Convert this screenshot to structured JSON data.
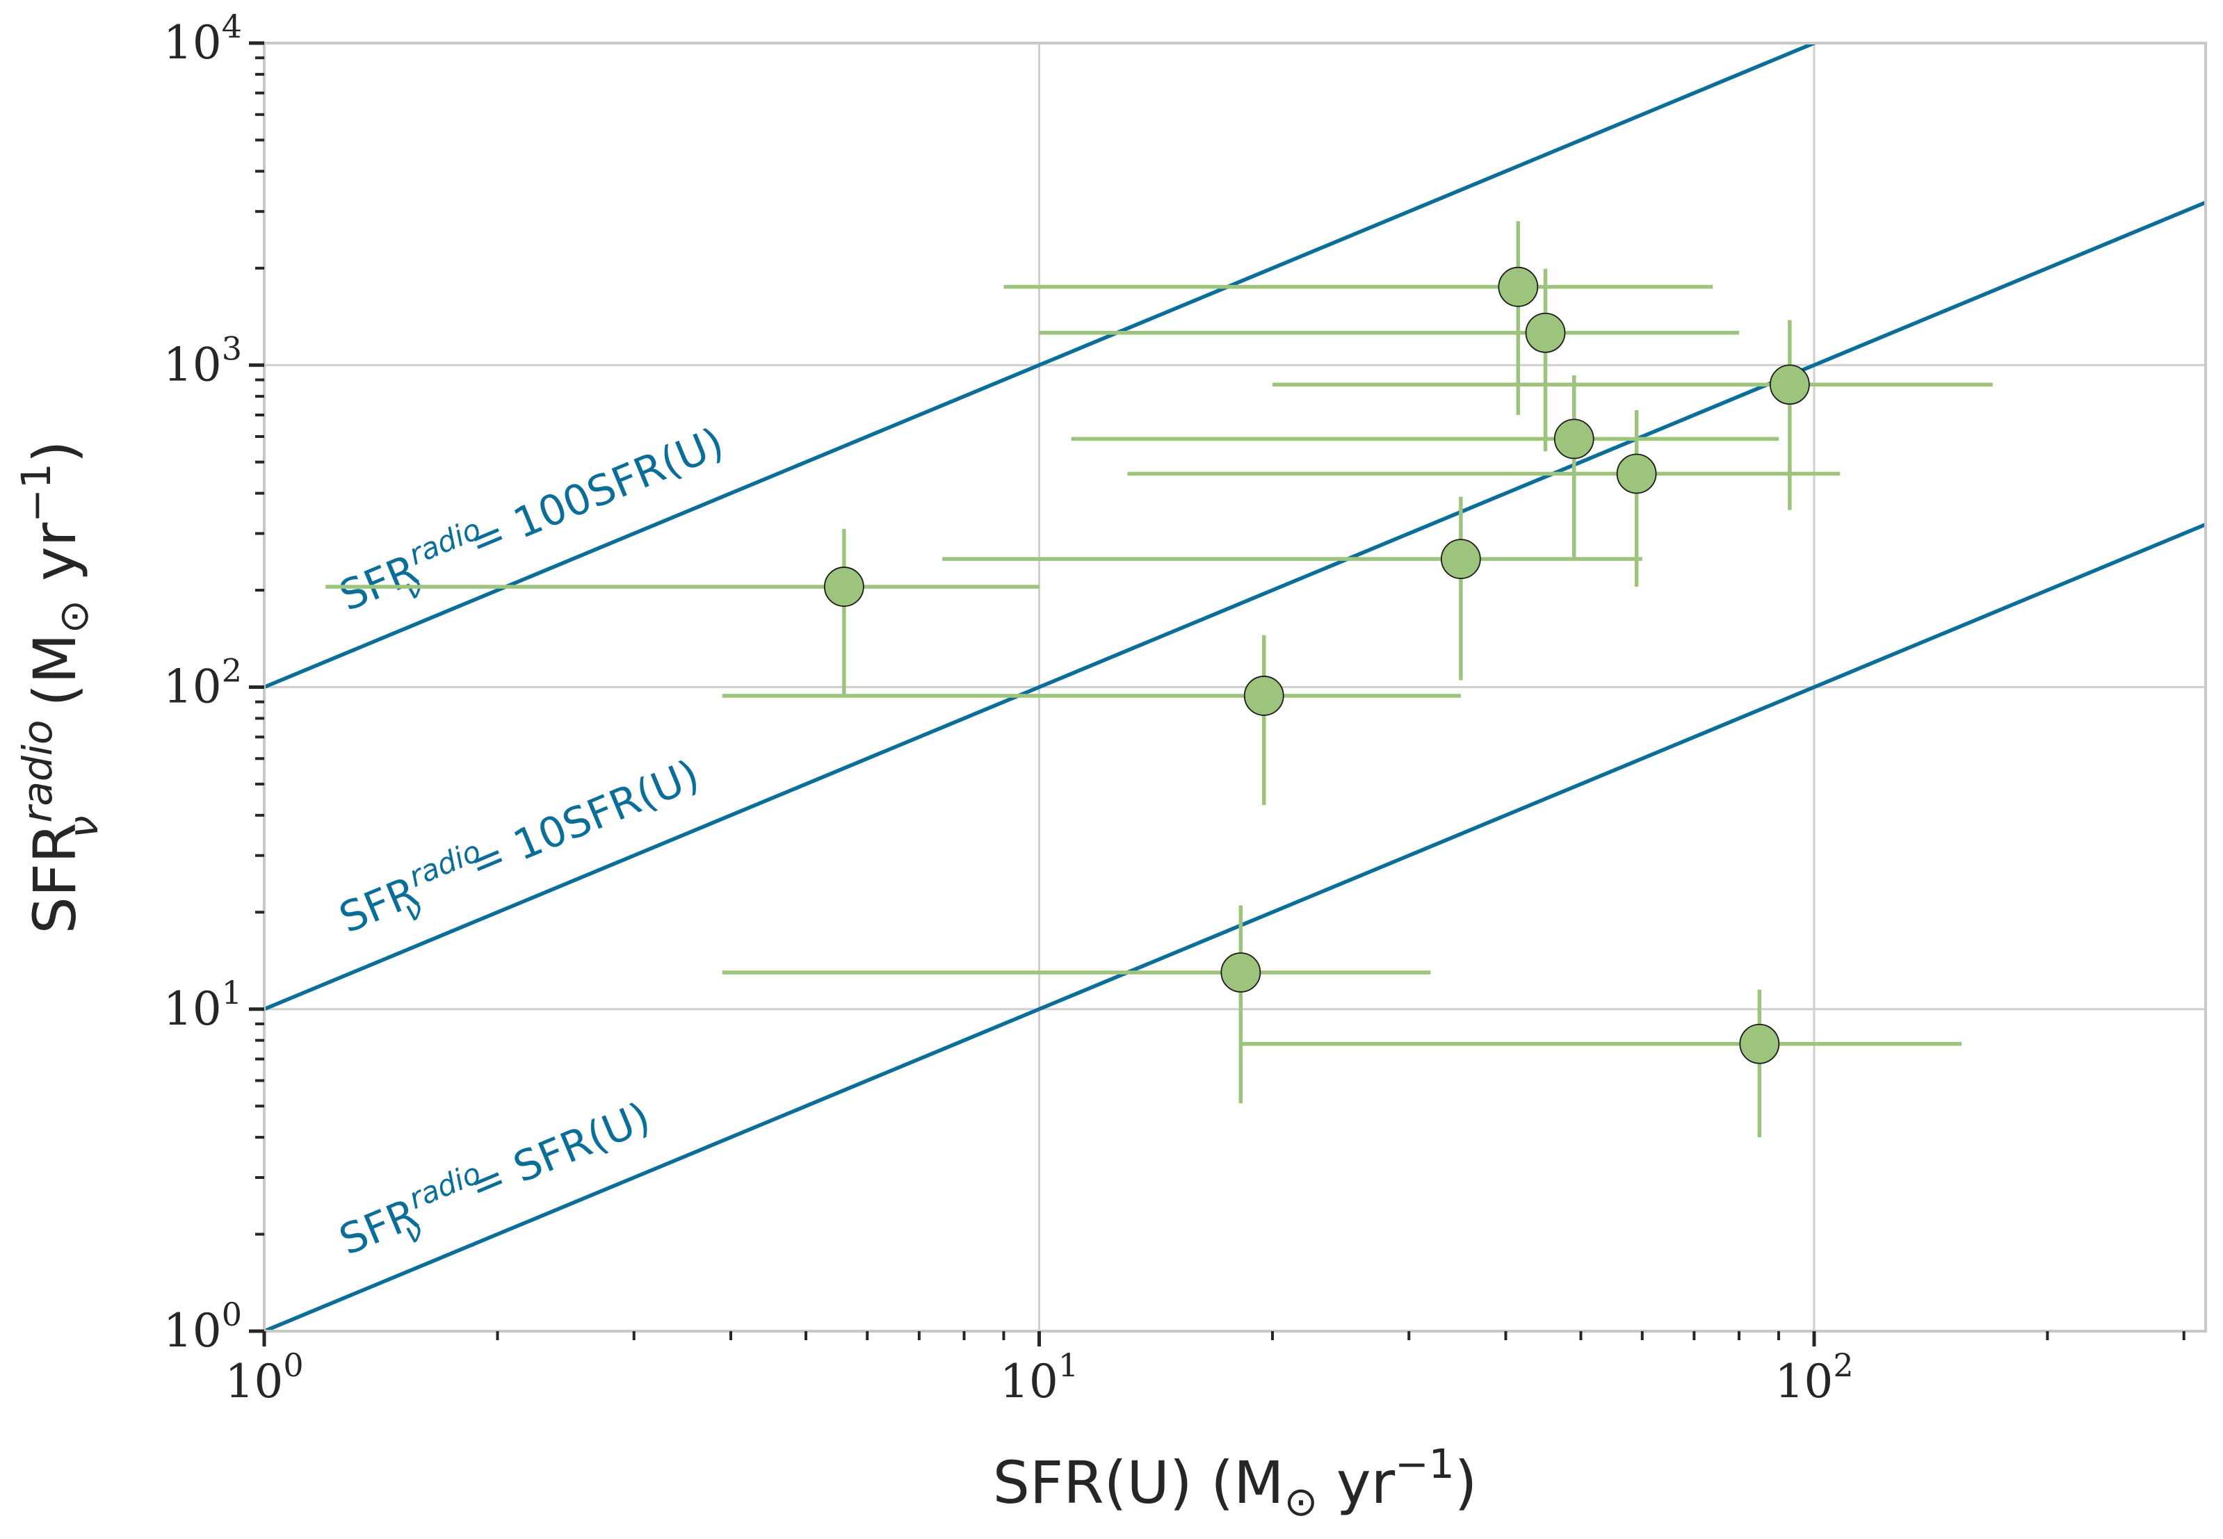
{
  "chart_data": {
    "type": "scatter",
    "x_scale": "log",
    "y_scale": "log",
    "xlim": [
      1,
      320
    ],
    "ylim": [
      1,
      10000
    ],
    "x_ticks": [
      {
        "value": 1,
        "base": "10",
        "exp": "0"
      },
      {
        "value": 10,
        "base": "10",
        "exp": "1"
      },
      {
        "value": 100,
        "base": "10",
        "exp": "2"
      }
    ],
    "y_ticks": [
      {
        "value": 1,
        "base": "10",
        "exp": "0"
      },
      {
        "value": 10,
        "base": "10",
        "exp": "1"
      },
      {
        "value": 100,
        "base": "10",
        "exp": "2"
      },
      {
        "value": 1000,
        "base": "10",
        "exp": "3"
      },
      {
        "value": 10000,
        "base": "10",
        "exp": "4"
      }
    ],
    "xlabel": {
      "main": "SFR(U) (M",
      "sub": "⊙",
      "mid": " yr",
      "sup": "−1",
      "end": ")"
    },
    "ylabel": {
      "main": "SFR",
      "sup": "radio",
      "sub": "ν",
      "mid": " (M",
      "sub2": "⊙",
      "mid2": " yr",
      "sup2": "−1",
      "end": ")"
    },
    "grid": true,
    "reference_lines": [
      {
        "factor": 100,
        "label_main": "SFR",
        "label_sup": "radio",
        "label_sub": "ν",
        "label_rest": " = 100SFR(U)"
      },
      {
        "factor": 10,
        "label_main": "SFR",
        "label_sup": "radio",
        "label_sub": "ν",
        "label_rest": " = 10SFR(U)"
      },
      {
        "factor": 1,
        "label_main": "SFR",
        "label_sup": "radio",
        "label_sub": "ν",
        "label_rest": " = SFR(U)"
      }
    ],
    "points": [
      {
        "x": 5.6,
        "y": 205,
        "xerr": [
          1.2,
          10
        ],
        "yerr": [
          95,
          310
        ]
      },
      {
        "x": 19.5,
        "y": 94,
        "xerr": [
          3.9,
          35
        ],
        "yerr": [
          43,
          145
        ]
      },
      {
        "x": 18.2,
        "y": 13,
        "xerr": [
          3.9,
          32
        ],
        "yerr": [
          5.1,
          21
        ]
      },
      {
        "x": 35,
        "y": 250,
        "xerr": [
          7.5,
          60
        ],
        "yerr": [
          105,
          390
        ]
      },
      {
        "x": 41.5,
        "y": 1750,
        "xerr": [
          9,
          74
        ],
        "yerr": [
          700,
          2800
        ]
      },
      {
        "x": 45,
        "y": 1260,
        "xerr": [
          10,
          80
        ],
        "yerr": [
          540,
          1990
        ]
      },
      {
        "x": 49,
        "y": 590,
        "xerr": [
          11,
          90
        ],
        "yerr": [
          250,
          930
        ]
      },
      {
        "x": 59,
        "y": 460,
        "xerr": [
          13,
          108
        ],
        "yerr": [
          205,
          725
        ]
      },
      {
        "x": 93,
        "y": 870,
        "xerr": [
          20,
          170
        ],
        "yerr": [
          355,
          1380
        ]
      },
      {
        "x": 85,
        "y": 7.8,
        "xerr": [
          18.2,
          155
        ],
        "yerr": [
          4.0,
          11.5
        ]
      }
    ],
    "colors": {
      "line": "#0b6e99",
      "point": "#9dc47c",
      "errorbar": "#9dc47c",
      "point_edge": "#1a1a1a",
      "grid": "#cfcfcf",
      "axis": "#262626",
      "spine": "#c8c8c8"
    }
  }
}
